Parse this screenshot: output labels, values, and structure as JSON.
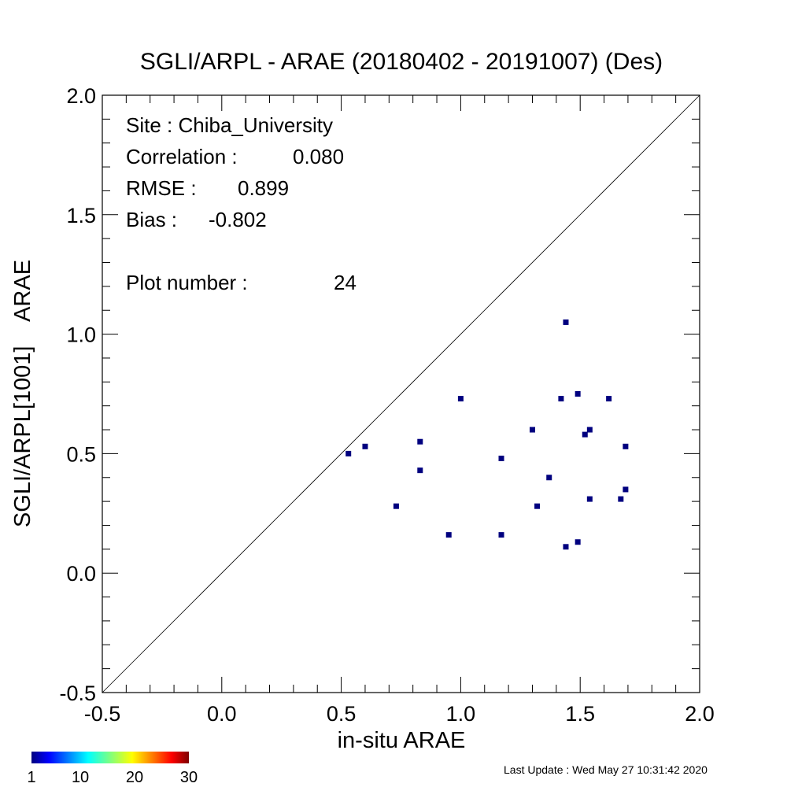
{
  "chart_data": {
    "type": "scatter",
    "title": "SGLI/ARPL - ARAE (20180402 - 20191007) (Des)",
    "xlabel": "in-situ ARAE",
    "ylabel": "SGLI/ARPL[1001]    ARAE",
    "xlim": [
      -0.5,
      2.0
    ],
    "ylim": [
      -0.5,
      2.0
    ],
    "x_ticks": [
      "-0.5",
      "0.0",
      "0.5",
      "1.0",
      "1.5",
      "2.0"
    ],
    "y_ticks": [
      "-0.5",
      "0.0",
      "0.5",
      "1.0",
      "1.5",
      "2.0"
    ],
    "reference_line": "1:1",
    "grid": false,
    "point_color": "#00007f",
    "points": [
      {
        "x": 0.53,
        "y": 0.5
      },
      {
        "x": 0.6,
        "y": 0.53
      },
      {
        "x": 0.73,
        "y": 0.28
      },
      {
        "x": 0.83,
        "y": 0.55
      },
      {
        "x": 0.83,
        "y": 0.43
      },
      {
        "x": 0.95,
        "y": 0.16
      },
      {
        "x": 1.0,
        "y": 0.73
      },
      {
        "x": 1.17,
        "y": 0.48
      },
      {
        "x": 1.17,
        "y": 0.16
      },
      {
        "x": 1.3,
        "y": 0.6
      },
      {
        "x": 1.32,
        "y": 0.28
      },
      {
        "x": 1.37,
        "y": 0.4
      },
      {
        "x": 1.42,
        "y": 0.73
      },
      {
        "x": 1.44,
        "y": 1.05
      },
      {
        "x": 1.44,
        "y": 0.11
      },
      {
        "x": 1.49,
        "y": 0.75
      },
      {
        "x": 1.49,
        "y": 0.13
      },
      {
        "x": 1.52,
        "y": 0.58
      },
      {
        "x": 1.54,
        "y": 0.6
      },
      {
        "x": 1.54,
        "y": 0.31
      },
      {
        "x": 1.62,
        "y": 0.73
      },
      {
        "x": 1.67,
        "y": 0.31
      },
      {
        "x": 1.69,
        "y": 0.53
      },
      {
        "x": 1.69,
        "y": 0.35
      }
    ],
    "stats": {
      "site_label": "Site : Chiba_University",
      "correlation_label": "Correlation :",
      "correlation_value": "0.080",
      "rmse_label": "RMSE :",
      "rmse_value": "0.899",
      "bias_label": "Bias :",
      "bias_value": "-0.802",
      "plot_number_label": "Plot number :",
      "plot_number_value": "24"
    },
    "colorbar": {
      "ticks": [
        "1",
        "10",
        "20",
        "30"
      ],
      "range": [
        1,
        30
      ],
      "colormap": "jet"
    }
  },
  "footer": {
    "last_update": "Last Update : Wed May 27 10:31:42 2020"
  }
}
